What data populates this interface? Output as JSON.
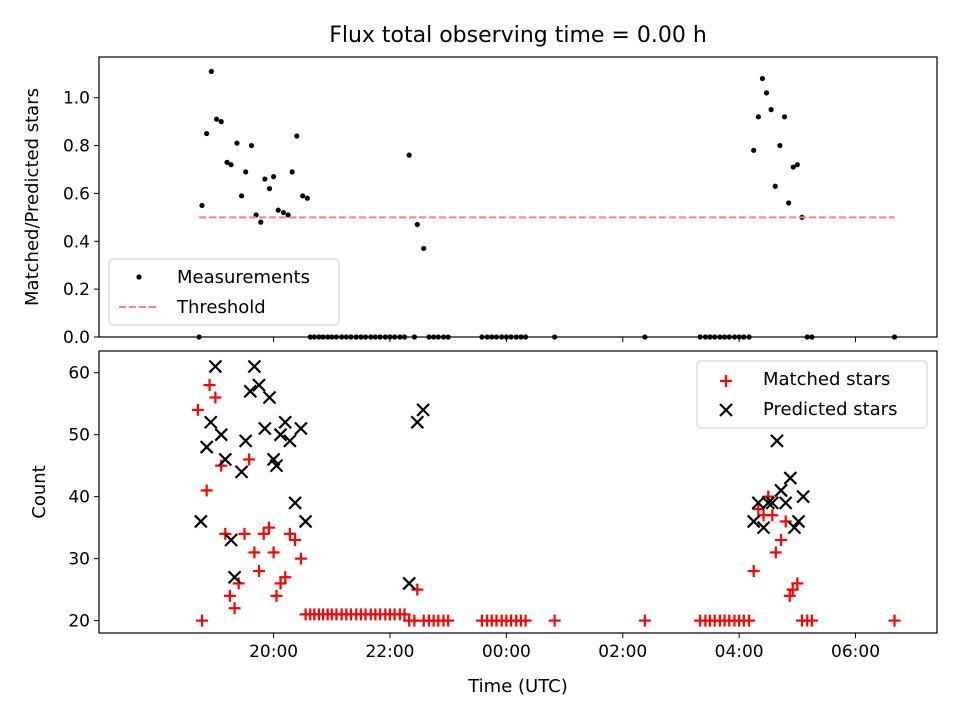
{
  "figure": {
    "title": "Flux total observing time = 0.00 h",
    "xlabel": "Time (UTC)"
  },
  "chart_data": [
    {
      "type": "scatter",
      "ylabel": "Matched/Predicted stars",
      "x_ticks": [
        "20:00",
        "22:00",
        "00:00",
        "02:00",
        "04:00",
        "06:00"
      ],
      "y_ticks": [
        "0.0",
        "0.2",
        "0.4",
        "0.6",
        "0.8",
        "1.0"
      ],
      "xlim_hours": [
        17.0,
        31.4
      ],
      "ylim": [
        0,
        1.17
      ],
      "legend_position": "lower-left",
      "grid": false,
      "series": [
        {
          "name": "Measurements",
          "color": "#000000",
          "marker": "dot",
          "points": [
            [
              18.72,
              0
            ],
            [
              18.77,
              0.55
            ],
            [
              18.85,
              0.85
            ],
            [
              18.93,
              1.11
            ],
            [
              19.02,
              0.91
            ],
            [
              19.1,
              0.9
            ],
            [
              19.2,
              0.73
            ],
            [
              19.27,
              0.72
            ],
            [
              19.37,
              0.81
            ],
            [
              19.45,
              0.59
            ],
            [
              19.52,
              0.69
            ],
            [
              19.62,
              0.8
            ],
            [
              19.7,
              0.51
            ],
            [
              19.78,
              0.48
            ],
            [
              19.85,
              0.66
            ],
            [
              19.93,
              0.62
            ],
            [
              20.0,
              0.67
            ],
            [
              20.08,
              0.53
            ],
            [
              20.17,
              0.52
            ],
            [
              20.25,
              0.51
            ],
            [
              20.32,
              0.69
            ],
            [
              20.4,
              0.84
            ],
            [
              20.5,
              0.59
            ],
            [
              20.58,
              0.58
            ],
            [
              20.63,
              0
            ],
            [
              20.7,
              0
            ],
            [
              20.78,
              0
            ],
            [
              20.85,
              0
            ],
            [
              20.93,
              0
            ],
            [
              21.0,
              0
            ],
            [
              21.08,
              0
            ],
            [
              21.17,
              0
            ],
            [
              21.25,
              0
            ],
            [
              21.33,
              0
            ],
            [
              21.42,
              0
            ],
            [
              21.5,
              0
            ],
            [
              21.58,
              0
            ],
            [
              21.67,
              0
            ],
            [
              21.75,
              0
            ],
            [
              21.83,
              0
            ],
            [
              21.92,
              0
            ],
            [
              22.0,
              0
            ],
            [
              22.08,
              0
            ],
            [
              22.17,
              0
            ],
            [
              22.25,
              0
            ],
            [
              22.33,
              0.76
            ],
            [
              22.42,
              0
            ],
            [
              22.47,
              0.47
            ],
            [
              22.58,
              0.37
            ],
            [
              22.67,
              0
            ],
            [
              22.75,
              0
            ],
            [
              22.83,
              0
            ],
            [
              22.92,
              0
            ],
            [
              23.0,
              0
            ],
            [
              23.58,
              0
            ],
            [
              23.67,
              0
            ],
            [
              23.75,
              0
            ],
            [
              23.83,
              0
            ],
            [
              23.92,
              0
            ],
            [
              24.0,
              0
            ],
            [
              24.08,
              0
            ],
            [
              24.17,
              0
            ],
            [
              24.25,
              0
            ],
            [
              24.33,
              0
            ],
            [
              24.83,
              0
            ],
            [
              26.38,
              0
            ],
            [
              27.33,
              0
            ],
            [
              27.42,
              0
            ],
            [
              27.5,
              0
            ],
            [
              27.58,
              0
            ],
            [
              27.67,
              0
            ],
            [
              27.75,
              0
            ],
            [
              27.83,
              0
            ],
            [
              27.92,
              0
            ],
            [
              28.0,
              0
            ],
            [
              28.08,
              0
            ],
            [
              28.17,
              0
            ],
            [
              28.25,
              0.78
            ],
            [
              28.33,
              0.92
            ],
            [
              28.4,
              1.08
            ],
            [
              28.47,
              1.02
            ],
            [
              28.55,
              0.95
            ],
            [
              28.62,
              0.63
            ],
            [
              28.7,
              0.8
            ],
            [
              28.78,
              0.92
            ],
            [
              28.85,
              0.56
            ],
            [
              28.93,
              0.71
            ],
            [
              29.0,
              0.72
            ],
            [
              29.08,
              0.5
            ],
            [
              29.17,
              0
            ],
            [
              29.25,
              0
            ],
            [
              30.67,
              0
            ]
          ]
        },
        {
          "name": "Threshold",
          "color": "#ff7f7f",
          "style": "dashed",
          "points": [
            [
              18.72,
              0.5
            ],
            [
              30.67,
              0.5
            ]
          ]
        }
      ]
    },
    {
      "type": "scatter",
      "ylabel": "Count",
      "x_ticks": [
        "20:00",
        "22:00",
        "00:00",
        "02:00",
        "04:00",
        "06:00"
      ],
      "y_ticks": [
        "20",
        "30",
        "40",
        "50",
        "60"
      ],
      "xlim_hours": [
        17.0,
        31.4
      ],
      "ylim": [
        18,
        63.5
      ],
      "legend_position": "upper-right",
      "grid": false,
      "series": [
        {
          "name": "Matched stars",
          "color": "#ff0000",
          "marker": "plus",
          "points": [
            [
              18.7,
              54
            ],
            [
              18.77,
              20
            ],
            [
              18.85,
              41
            ],
            [
              18.9,
              58
            ],
            [
              19.0,
              56
            ],
            [
              19.1,
              45
            ],
            [
              19.17,
              34
            ],
            [
              19.25,
              24
            ],
            [
              19.33,
              22
            ],
            [
              19.4,
              26
            ],
            [
              19.5,
              34
            ],
            [
              19.58,
              46
            ],
            [
              19.67,
              31
            ],
            [
              19.75,
              28
            ],
            [
              19.83,
              34
            ],
            [
              19.92,
              35
            ],
            [
              20.0,
              31
            ],
            [
              20.05,
              24
            ],
            [
              20.12,
              26
            ],
            [
              20.2,
              27
            ],
            [
              20.28,
              34
            ],
            [
              20.37,
              33
            ],
            [
              20.47,
              30
            ],
            [
              20.55,
              21
            ],
            [
              20.63,
              21
            ],
            [
              20.7,
              21
            ],
            [
              20.78,
              21
            ],
            [
              20.85,
              21
            ],
            [
              20.93,
              21
            ],
            [
              21.0,
              21
            ],
            [
              21.08,
              21
            ],
            [
              21.17,
              21
            ],
            [
              21.25,
              21
            ],
            [
              21.33,
              21
            ],
            [
              21.42,
              21
            ],
            [
              21.5,
              21
            ],
            [
              21.58,
              21
            ],
            [
              21.67,
              21
            ],
            [
              21.75,
              21
            ],
            [
              21.83,
              21
            ],
            [
              21.92,
              21
            ],
            [
              22.0,
              21
            ],
            [
              22.08,
              21
            ],
            [
              22.17,
              21
            ],
            [
              22.25,
              21
            ],
            [
              22.33,
              20
            ],
            [
              22.42,
              20
            ],
            [
              22.47,
              25
            ],
            [
              22.58,
              20
            ],
            [
              22.67,
              20
            ],
            [
              22.75,
              20
            ],
            [
              22.83,
              20
            ],
            [
              22.92,
              20
            ],
            [
              23.0,
              20
            ],
            [
              23.58,
              20
            ],
            [
              23.67,
              20
            ],
            [
              23.75,
              20
            ],
            [
              23.83,
              20
            ],
            [
              23.92,
              20
            ],
            [
              24.0,
              20
            ],
            [
              24.08,
              20
            ],
            [
              24.17,
              20
            ],
            [
              24.25,
              20
            ],
            [
              24.33,
              20
            ],
            [
              24.83,
              20
            ],
            [
              26.38,
              20
            ],
            [
              27.33,
              20
            ],
            [
              27.42,
              20
            ],
            [
              27.5,
              20
            ],
            [
              27.58,
              20
            ],
            [
              27.67,
              20
            ],
            [
              27.75,
              20
            ],
            [
              27.83,
              20
            ],
            [
              27.92,
              20
            ],
            [
              28.0,
              20
            ],
            [
              28.08,
              20
            ],
            [
              28.17,
              20
            ],
            [
              28.25,
              28
            ],
            [
              28.33,
              38
            ],
            [
              28.42,
              37
            ],
            [
              28.5,
              40
            ],
            [
              28.57,
              37
            ],
            [
              28.63,
              31
            ],
            [
              28.72,
              33
            ],
            [
              28.8,
              36
            ],
            [
              28.87,
              24
            ],
            [
              28.92,
              25
            ],
            [
              29.0,
              26
            ],
            [
              29.08,
              20
            ],
            [
              29.17,
              20
            ],
            [
              29.25,
              20
            ],
            [
              30.67,
              20
            ]
          ]
        },
        {
          "name": "Predicted stars",
          "color": "#000000",
          "marker": "x",
          "points": [
            [
              18.75,
              36
            ],
            [
              18.85,
              48
            ],
            [
              18.92,
              52
            ],
            [
              19.0,
              61
            ],
            [
              19.1,
              50
            ],
            [
              19.17,
              46
            ],
            [
              19.27,
              33
            ],
            [
              19.33,
              27
            ],
            [
              19.45,
              44
            ],
            [
              19.52,
              49
            ],
            [
              19.6,
              57
            ],
            [
              19.67,
              61
            ],
            [
              19.75,
              58
            ],
            [
              19.85,
              51
            ],
            [
              19.93,
              56
            ],
            [
              20.0,
              46
            ],
            [
              20.05,
              45
            ],
            [
              20.12,
              50
            ],
            [
              20.2,
              52
            ],
            [
              20.28,
              49
            ],
            [
              20.37,
              39
            ],
            [
              20.47,
              51
            ],
            [
              20.55,
              36
            ],
            [
              22.33,
              26
            ],
            [
              22.47,
              52
            ],
            [
              22.57,
              54
            ],
            [
              28.25,
              36
            ],
            [
              28.33,
              39
            ],
            [
              28.42,
              35
            ],
            [
              28.5,
              39
            ],
            [
              28.57,
              39
            ],
            [
              28.65,
              49
            ],
            [
              28.72,
              41
            ],
            [
              28.8,
              39
            ],
            [
              28.88,
              43
            ],
            [
              28.95,
              35
            ],
            [
              29.02,
              36
            ],
            [
              29.1,
              40
            ]
          ]
        }
      ]
    }
  ]
}
